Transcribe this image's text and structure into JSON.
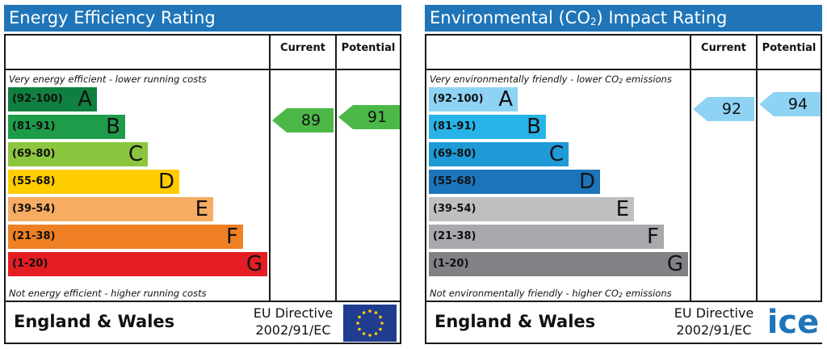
{
  "chart_data": [
    {
      "type": "bar",
      "title": "Energy Efficiency Rating",
      "columns": [
        "Current",
        "Potential"
      ],
      "top_note": "Very energy efficient - lower running costs",
      "bottom_note": "Not energy efficient - higher running costs",
      "bands": [
        {
          "range": "(92-100)",
          "letter": "A",
          "min": 92,
          "max": 100,
          "color": "#108040"
        },
        {
          "range": "(81-91)",
          "letter": "B",
          "min": 81,
          "max": 91,
          "color": "#1e9c4a"
        },
        {
          "range": "(69-80)",
          "letter": "C",
          "min": 69,
          "max": 80,
          "color": "#8cc63e"
        },
        {
          "range": "(55-68)",
          "letter": "D",
          "min": 55,
          "max": 68,
          "color": "#ffcc00"
        },
        {
          "range": "(39-54)",
          "letter": "E",
          "min": 39,
          "max": 54,
          "color": "#f6ac62"
        },
        {
          "range": "(21-38)",
          "letter": "F",
          "min": 21,
          "max": 38,
          "color": "#ef8023"
        },
        {
          "range": "(1-20)",
          "letter": "G",
          "min": 1,
          "max": 20,
          "color": "#e31d23"
        }
      ],
      "current": {
        "value": 89,
        "band": "B",
        "color": "#4cb848"
      },
      "potential": {
        "value": 91,
        "band": "B",
        "color": "#4cb848"
      },
      "footer_region": "England & Wales",
      "directive_line1": "EU Directive",
      "directive_line2": "2002/91/EC"
    },
    {
      "type": "bar",
      "title_prefix": "Environmental (CO",
      "title_sub": "2",
      "title_suffix": ") Impact Rating",
      "columns": [
        "Current",
        "Potential"
      ],
      "top_note_prefix": "Very environmentally friendly - lower CO",
      "top_note_sub": "2",
      "top_note_suffix": " emissions",
      "bottom_note_prefix": "Not environmentally friendly - higher CO",
      "bottom_note_sub": "2",
      "bottom_note_suffix": " emissions",
      "bands": [
        {
          "range": "(92-100)",
          "letter": "A",
          "min": 92,
          "max": 100,
          "color": "#8fd3f4"
        },
        {
          "range": "(81-91)",
          "letter": "B",
          "min": 81,
          "max": 91,
          "color": "#28b4e8"
        },
        {
          "range": "(69-80)",
          "letter": "C",
          "min": 69,
          "max": 80,
          "color": "#1e9ad6"
        },
        {
          "range": "(55-68)",
          "letter": "D",
          "min": 55,
          "max": 68,
          "color": "#1c75bb"
        },
        {
          "range": "(39-54)",
          "letter": "E",
          "min": 39,
          "max": 54,
          "color": "#bdbfc1"
        },
        {
          "range": "(21-38)",
          "letter": "F",
          "min": 21,
          "max": 38,
          "color": "#a7a9ac"
        },
        {
          "range": "(1-20)",
          "letter": "G",
          "min": 1,
          "max": 20,
          "color": "#808285"
        }
      ],
      "current": {
        "value": 92,
        "band": "A",
        "color": "#8fd3f4"
      },
      "potential": {
        "value": 94,
        "band": "A",
        "color": "#8fd3f4"
      },
      "footer_region": "England & Wales",
      "directive_line1": "EU Directive",
      "directive_line2": "2002/91/EC"
    }
  ],
  "colors": {
    "header": "#1f75b8",
    "border": "#1a1a1a",
    "eu_flag": "#1f3c8f",
    "eu_stars": "#ffcc00"
  },
  "watermark_text": "ice"
}
